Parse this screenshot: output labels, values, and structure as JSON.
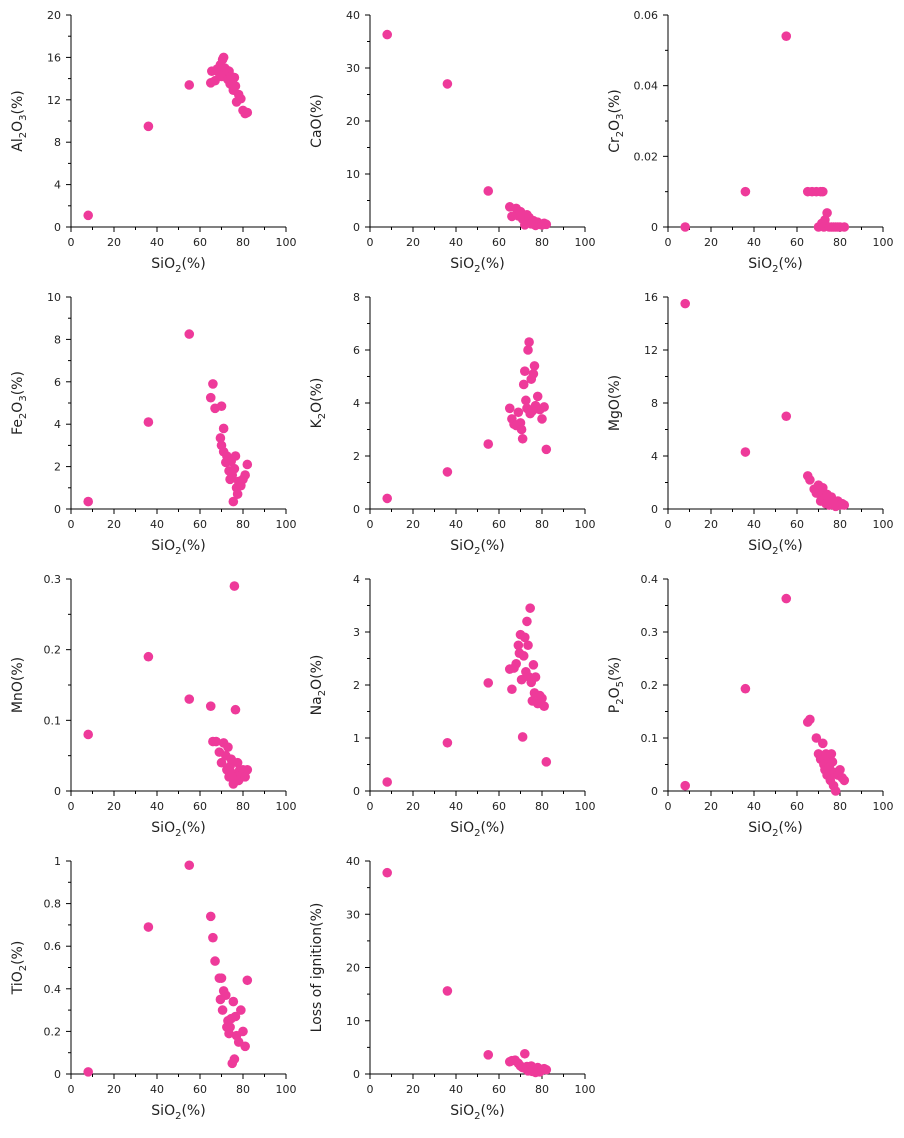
{
  "style": {
    "marker_color": "#EE3A9A",
    "axis_color": "#000000",
    "background": "#FFFFFF"
  },
  "chart_data": [
    {
      "type": "scatter",
      "xlabel": "SiO2(%)",
      "ylabel": "Al2O3(%)",
      "xlim": [
        0,
        100
      ],
      "ylim": [
        0,
        20
      ],
      "xticks": [
        0,
        20,
        40,
        60,
        80,
        100
      ],
      "yticks": [
        0,
        4,
        8,
        12,
        16,
        20
      ],
      "x": [
        8,
        36,
        55,
        65,
        65.5,
        67,
        68,
        69,
        69.5,
        70,
        70.5,
        71,
        71.5,
        72,
        72.5,
        73,
        73.5,
        74,
        74.5,
        75,
        75.5,
        76,
        76.5,
        77,
        78,
        79,
        80,
        81,
        82
      ],
      "y": [
        1.1,
        9.5,
        13.4,
        13.6,
        14.7,
        13.8,
        14.9,
        14.5,
        15.3,
        14.2,
        15.8,
        16.0,
        15.0,
        14.4,
        14.8,
        13.9,
        14.7,
        13.5,
        14.2,
        13.6,
        12.9,
        14.1,
        13.3,
        11.8,
        12.5,
        12.1,
        11.0,
        10.7,
        10.8
      ]
    },
    {
      "type": "scatter",
      "xlabel": "SiO2(%)",
      "ylabel": "CaO(%)",
      "xlim": [
        0,
        100
      ],
      "ylim": [
        0,
        40
      ],
      "xticks": [
        0,
        20,
        40,
        60,
        80,
        100
      ],
      "yticks": [
        0,
        10,
        20,
        30,
        40
      ],
      "x": [
        8,
        36,
        55,
        65,
        66,
        68,
        69,
        70,
        71,
        72,
        73,
        74,
        75,
        76,
        77,
        78,
        79,
        80,
        81,
        82
      ],
      "y": [
        36.3,
        27.0,
        6.8,
        3.8,
        2.0,
        3.5,
        2.1,
        2.9,
        1.5,
        0.4,
        2.3,
        1.8,
        0.6,
        1.2,
        0.3,
        0.9,
        0.5,
        0.4,
        0.7,
        0.5
      ]
    },
    {
      "type": "scatter",
      "xlabel": "SiO2(%)",
      "ylabel": "Cr2O3(%)",
      "xlim": [
        0,
        100
      ],
      "ylim": [
        0,
        0.06
      ],
      "xticks": [
        0,
        20,
        40,
        60,
        80,
        100
      ],
      "yticks": [
        0,
        0.02,
        0.04,
        0.06
      ],
      "x": [
        8,
        36,
        55,
        65,
        67,
        69,
        71,
        72,
        70,
        71.5,
        73,
        72.5,
        74,
        75,
        76,
        77,
        78,
        79,
        80,
        82
      ],
      "y": [
        0,
        0.01,
        0.054,
        0.01,
        0.01,
        0.01,
        0.01,
        0.01,
        0,
        0.001,
        0.002,
        0,
        0.004,
        0,
        0,
        0,
        0,
        0,
        0,
        0
      ]
    },
    {
      "type": "scatter",
      "xlabel": "SiO2(%)",
      "ylabel": "Fe2O3(%)",
      "xlim": [
        0,
        100
      ],
      "ylim": [
        0,
        10
      ],
      "xticks": [
        0,
        20,
        40,
        60,
        80,
        100
      ],
      "yticks": [
        0,
        2,
        4,
        6,
        8,
        10
      ],
      "x": [
        8,
        36,
        55,
        65,
        66,
        67,
        70,
        71,
        69.5,
        70,
        71,
        72,
        72.5,
        73,
        73.5,
        74,
        74.5,
        75,
        75.5,
        76,
        76.5,
        77,
        77.5,
        78,
        79,
        80,
        81,
        82
      ],
      "y": [
        0.35,
        4.1,
        8.25,
        5.25,
        5.9,
        4.75,
        4.85,
        3.8,
        3.35,
        3.0,
        2.7,
        2.2,
        2.5,
        2.3,
        1.8,
        1.4,
        2.25,
        1.6,
        0.35,
        1.9,
        2.5,
        1.0,
        0.7,
        1.3,
        1.1,
        1.4,
        1.6,
        2.1
      ]
    },
    {
      "type": "scatter",
      "xlabel": "SiO2(%)",
      "ylabel": "K2O(%)",
      "xlim": [
        0,
        100
      ],
      "ylim": [
        0,
        8
      ],
      "xticks": [
        0,
        20,
        40,
        60,
        80,
        100
      ],
      "yticks": [
        0,
        2,
        4,
        6,
        8
      ],
      "x": [
        8,
        36,
        55,
        65,
        66,
        67,
        68,
        69,
        70,
        70.5,
        71,
        71.5,
        72,
        72.5,
        73,
        73.5,
        74,
        74.5,
        75,
        75.5,
        76,
        76.5,
        77,
        78,
        79,
        80,
        81,
        82
      ],
      "y": [
        0.4,
        1.4,
        2.45,
        3.8,
        3.4,
        3.2,
        3.15,
        3.65,
        3.25,
        3.0,
        2.65,
        4.7,
        5.2,
        4.1,
        3.8,
        6.0,
        6.3,
        3.6,
        4.9,
        3.7,
        5.1,
        5.4,
        3.9,
        4.25,
        3.75,
        3.4,
        3.85,
        2.25
      ]
    },
    {
      "type": "scatter",
      "xlabel": "SiO2(%)",
      "ylabel": "MgO(%)",
      "xlim": [
        0,
        100
      ],
      "ylim": [
        0,
        16
      ],
      "xticks": [
        0,
        20,
        40,
        60,
        80,
        100
      ],
      "yticks": [
        0,
        4,
        8,
        12,
        16
      ],
      "x": [
        8,
        36,
        55,
        65,
        66,
        68,
        69,
        70,
        71,
        72,
        72.5,
        73,
        73.5,
        74,
        75,
        76,
        77,
        78,
        79,
        80,
        81,
        82
      ],
      "y": [
        15.5,
        4.3,
        7.0,
        2.5,
        2.2,
        1.5,
        1.2,
        1.8,
        0.6,
        1.6,
        1.0,
        0.8,
        0.4,
        1.1,
        0.3,
        0.9,
        0.5,
        0.2,
        0.6,
        0.3,
        0.4,
        0.3
      ]
    },
    {
      "type": "scatter",
      "xlabel": "SiO2(%)",
      "ylabel": "MnO(%)",
      "xlim": [
        0,
        100
      ],
      "ylim": [
        0,
        0.3
      ],
      "xticks": [
        0,
        20,
        40,
        60,
        80,
        100
      ],
      "yticks": [
        0,
        0.1,
        0.2,
        0.3
      ],
      "x": [
        8,
        36,
        55,
        65,
        66,
        67.5,
        69,
        70,
        71,
        72,
        72.5,
        73,
        73.5,
        74,
        74.5,
        75,
        75.5,
        76,
        76.5,
        77,
        77.5,
        78,
        78.5,
        79,
        80,
        81,
        82
      ],
      "y": [
        0.08,
        0.19,
        0.13,
        0.12,
        0.07,
        0.07,
        0.055,
        0.04,
        0.068,
        0.05,
        0.03,
        0.062,
        0.02,
        0.035,
        0.045,
        0.025,
        0.01,
        0.29,
        0.115,
        0.02,
        0.04,
        0.015,
        0.03,
        0.025,
        0.03,
        0.02,
        0.03
      ]
    },
    {
      "type": "scatter",
      "xlabel": "SiO2(%)",
      "ylabel": "Na2O(%)",
      "xlim": [
        0,
        100
      ],
      "ylim": [
        0,
        4
      ],
      "xticks": [
        0,
        20,
        40,
        60,
        80,
        100
      ],
      "yticks": [
        0,
        1,
        2,
        3,
        4
      ],
      "x": [
        8,
        36,
        55,
        65,
        66,
        67,
        68,
        69,
        69.5,
        70,
        70.5,
        71,
        71.5,
        72,
        72.5,
        73,
        73.5,
        74,
        74.5,
        75,
        75.5,
        76,
        76.5,
        77,
        78,
        79,
        80,
        81,
        82
      ],
      "y": [
        0.17,
        0.91,
        2.04,
        2.3,
        1.92,
        2.32,
        2.4,
        2.75,
        2.6,
        2.95,
        2.1,
        1.02,
        2.55,
        2.9,
        2.25,
        3.2,
        2.75,
        2.15,
        3.45,
        2.05,
        1.7,
        2.38,
        1.85,
        2.15,
        1.65,
        1.8,
        1.75,
        1.6,
        0.55
      ]
    },
    {
      "type": "scatter",
      "xlabel": "SiO2(%)",
      "ylabel": "P2O5(%)",
      "xlim": [
        0,
        100
      ],
      "ylim": [
        0,
        0.4
      ],
      "xticks": [
        0,
        20,
        40,
        60,
        80,
        100
      ],
      "yticks": [
        0,
        0.1,
        0.2,
        0.3,
        0.4
      ],
      "x": [
        8,
        36,
        55,
        65,
        66,
        69,
        70,
        71,
        72,
        72.5,
        73,
        73.5,
        74,
        74.5,
        75,
        75.5,
        76,
        76.5,
        77,
        77.5,
        78,
        79,
        80,
        81,
        82
      ],
      "y": [
        0.01,
        0.193,
        0.363,
        0.13,
        0.135,
        0.1,
        0.07,
        0.06,
        0.09,
        0.05,
        0.04,
        0.07,
        0.03,
        0.06,
        0.045,
        0.02,
        0.07,
        0.055,
        0.01,
        0.035,
        0.0,
        0.03,
        0.04,
        0.025,
        0.02
      ]
    },
    {
      "type": "scatter",
      "xlabel": "SiO2(%)",
      "ylabel": "TiO2(%)",
      "xlim": [
        0,
        100
      ],
      "ylim": [
        0,
        1
      ],
      "xticks": [
        0,
        20,
        40,
        60,
        80,
        100
      ],
      "yticks": [
        0,
        0.2,
        0.4,
        0.6,
        0.8,
        1
      ],
      "x": [
        8,
        36,
        55,
        65,
        66,
        67,
        69,
        70,
        69.5,
        70.5,
        71,
        72,
        72.5,
        73,
        73.5,
        74,
        74.5,
        75,
        75.5,
        76,
        76.5,
        77,
        78,
        79,
        80,
        81,
        82
      ],
      "y": [
        0.01,
        0.69,
        0.98,
        0.74,
        0.64,
        0.53,
        0.45,
        0.45,
        0.35,
        0.3,
        0.39,
        0.37,
        0.22,
        0.25,
        0.19,
        0.22,
        0.26,
        0.05,
        0.34,
        0.07,
        0.27,
        0.18,
        0.15,
        0.3,
        0.2,
        0.13,
        0.44
      ]
    },
    {
      "type": "scatter",
      "xlabel": "SiO2(%)",
      "ylabel": "Loss of ignition(%)",
      "xlim": [
        0,
        100
      ],
      "ylim": [
        0,
        40
      ],
      "xticks": [
        0,
        20,
        40,
        60,
        80,
        100
      ],
      "yticks": [
        0,
        10,
        20,
        30,
        40
      ],
      "x": [
        8,
        36,
        55,
        65,
        66,
        67.5,
        69,
        70,
        71,
        72,
        72.5,
        73,
        73.5,
        74,
        75,
        75.5,
        76,
        77,
        78,
        79,
        80,
        81,
        82
      ],
      "y": [
        37.8,
        15.6,
        3.6,
        2.3,
        2.5,
        2.6,
        2.0,
        1.5,
        1.2,
        3.8,
        1.0,
        1.4,
        0.6,
        0.9,
        1.5,
        0.5,
        1.0,
        0.3,
        1.2,
        0.4,
        0.8,
        1.0,
        0.8
      ]
    }
  ]
}
